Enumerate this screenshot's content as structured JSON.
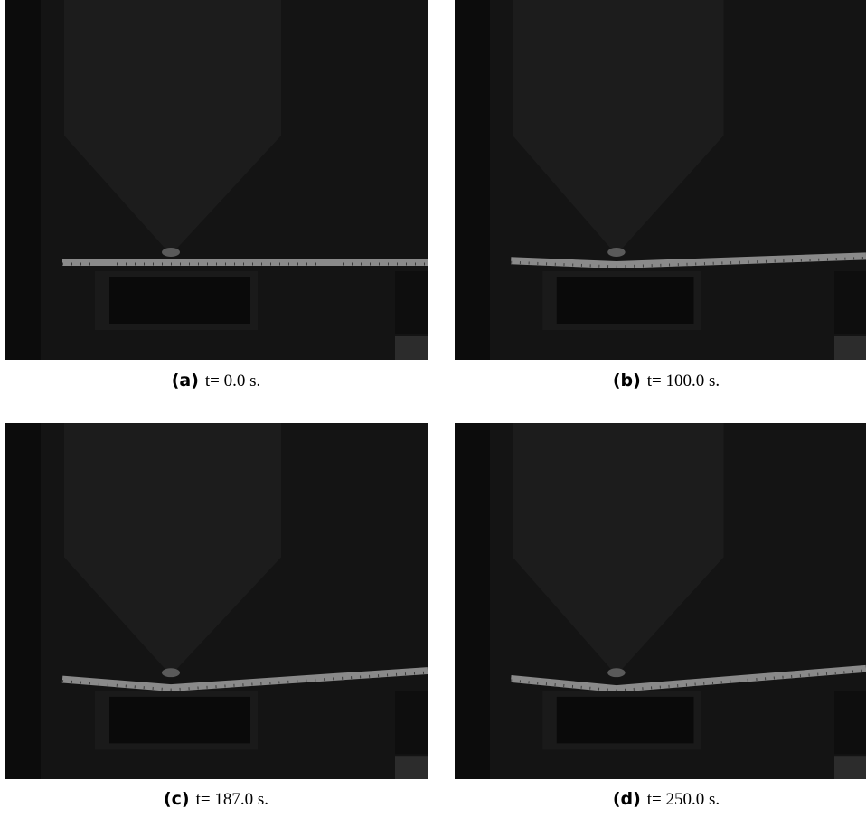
{
  "panels": [
    {
      "label": "(a)",
      "caption": "t= 0.0 s."
    },
    {
      "label": "(b)",
      "caption": "t= 100.0 s."
    },
    {
      "label": "(c)",
      "caption": "t= 187.0 s."
    },
    {
      "label": "(d)",
      "caption": "t= 250.0 s."
    }
  ]
}
